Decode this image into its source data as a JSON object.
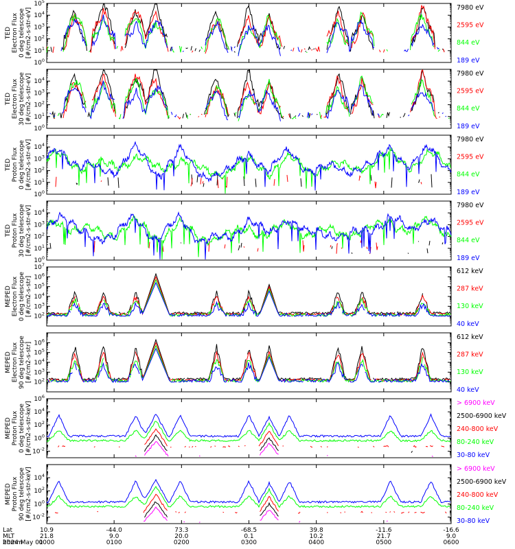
{
  "figure": {
    "date": "2024 May 01",
    "colors": {
      "black": "#000000",
      "red": "#ff0000",
      "green": "#00ff00",
      "blue": "#0000ff",
      "magenta": "#ff00ff"
    }
  },
  "chart_data": [
    {
      "type": "line",
      "panel_label": [
        "TED",
        "Electron Flux",
        "0 deg telescope",
        "[#/cm2-s-str-eV]"
      ],
      "y_scale": "log",
      "ylim_exponent": [
        0,
        5
      ],
      "y_tick_exponents": [
        0,
        1,
        2,
        3,
        4,
        5
      ],
      "series": [
        {
          "name": "7980 eV",
          "color": "black"
        },
        {
          "name": "2595 eV",
          "color": "red"
        },
        {
          "name": "844 eV",
          "color": "green"
        },
        {
          "name": "189 eV",
          "color": "blue"
        }
      ]
    },
    {
      "type": "line",
      "panel_label": [
        "TED",
        "Electron Flux",
        "30 deg telescope",
        "[#/cm2-s-str-eV]"
      ],
      "y_scale": "log",
      "ylim_exponent": [
        0,
        5
      ],
      "y_tick_exponents": [
        0,
        1,
        2,
        3,
        4
      ],
      "series": [
        {
          "name": "7980 eV",
          "color": "black"
        },
        {
          "name": "2595 eV",
          "color": "red"
        },
        {
          "name": "844 eV",
          "color": "green"
        },
        {
          "name": "189 eV",
          "color": "blue"
        }
      ]
    },
    {
      "type": "line",
      "panel_label": [
        "TED",
        "Proton Flux",
        "0 deg telescope",
        "[#/cm2-s-str-eV]"
      ],
      "y_scale": "log",
      "ylim_exponent": [
        0,
        5
      ],
      "y_tick_exponents": [
        0,
        1,
        2,
        3,
        4
      ],
      "series": [
        {
          "name": "7980 eV",
          "color": "black"
        },
        {
          "name": "2595 eV",
          "color": "red"
        },
        {
          "name": "844 eV",
          "color": "green"
        },
        {
          "name": "189 eV",
          "color": "blue"
        }
      ]
    },
    {
      "type": "line",
      "panel_label": [
        "TED",
        "Proton Flux",
        "30 deg telescope",
        "[#/cm2-s-str-eV]"
      ],
      "y_scale": "log",
      "ylim_exponent": [
        0,
        5
      ],
      "y_tick_exponents": [
        0,
        1,
        2,
        3,
        4
      ],
      "series": [
        {
          "name": "7980 eV",
          "color": "black"
        },
        {
          "name": "2595 eV",
          "color": "red"
        },
        {
          "name": "844 eV",
          "color": "green"
        },
        {
          "name": "189 eV",
          "color": "blue"
        }
      ]
    },
    {
      "type": "line",
      "panel_label": [
        "MEPED",
        "Electron Flux",
        "0 deg telescope",
        "[#/cm2-s-str]"
      ],
      "y_scale": "log",
      "ylim_exponent": [
        1,
        7
      ],
      "y_tick_exponents": [
        2,
        3,
        4,
        5,
        6,
        7
      ],
      "series": [
        {
          "name": "612 keV",
          "color": "black"
        },
        {
          "name": "287 keV",
          "color": "red"
        },
        {
          "name": "130 keV",
          "color": "green"
        },
        {
          "name": "40 keV",
          "color": "blue"
        }
      ]
    },
    {
      "type": "line",
      "panel_label": [
        "MEPED",
        "Electron Flux",
        "90 deg telescope",
        "[#/cm2-s-str]"
      ],
      "y_scale": "log",
      "ylim_exponent": [
        1,
        7
      ],
      "y_tick_exponents": [
        2,
        3,
        4,
        5,
        6
      ],
      "series": [
        {
          "name": "612 keV",
          "color": "black"
        },
        {
          "name": "287 keV",
          "color": "red"
        },
        {
          "name": "130 keV",
          "color": "green"
        },
        {
          "name": "40 keV",
          "color": "blue"
        }
      ]
    },
    {
      "type": "line",
      "panel_label": [
        "MEPED",
        "Proton Flux",
        "0 deg telescope",
        "[#/cm2-s-str-keV]"
      ],
      "y_scale": "log",
      "ylim_exponent": [
        -3,
        6
      ],
      "y_tick_exponents": [
        -2,
        0,
        2,
        4,
        6
      ],
      "series": [
        {
          "name": "> 6900 keV",
          "color": "magenta"
        },
        {
          "name": "2500-6900 keV",
          "color": "black"
        },
        {
          "name": "240-800 keV",
          "color": "red"
        },
        {
          "name": "80-240 keV",
          "color": "green"
        },
        {
          "name": "30-80 keV",
          "color": "blue"
        }
      ]
    },
    {
      "type": "line",
      "panel_label": [
        "MEPED",
        "Proton Flux",
        "90 deg telescope",
        "[#/cm2-s-str-keV]"
      ],
      "y_scale": "log",
      "ylim_exponent": [
        -3,
        6
      ],
      "y_tick_exponents": [
        -2,
        0,
        2,
        4
      ],
      "series": [
        {
          "name": "> 6900 keV",
          "color": "magenta"
        },
        {
          "name": "2500-6900 keV",
          "color": "black"
        },
        {
          "name": "240-800 keV",
          "color": "red"
        },
        {
          "name": "80-240 keV",
          "color": "green"
        },
        {
          "name": "30-80 keV",
          "color": "blue"
        }
      ]
    }
  ],
  "x_axis": {
    "row_labels": [
      "Lat",
      "MLT",
      "hhmm"
    ],
    "ticks": [
      {
        "lat": "10.9",
        "mlt": "21.8",
        "hhmm": "0000"
      },
      {
        "lat": "-44.0",
        "mlt": "9.0",
        "hhmm": "0100"
      },
      {
        "lat": "73.3",
        "mlt": "20.0",
        "hhmm": "0200"
      },
      {
        "lat": "-68.5",
        "mlt": "0.1",
        "hhmm": "0300"
      },
      {
        "lat": "39.8",
        "mlt": "10.2",
        "hhmm": "0400"
      },
      {
        "lat": "-11.6",
        "mlt": "21.7",
        "hhmm": "0500"
      },
      {
        "lat": "-16.6",
        "mlt": "9.0",
        "hhmm": "0600"
      }
    ]
  }
}
